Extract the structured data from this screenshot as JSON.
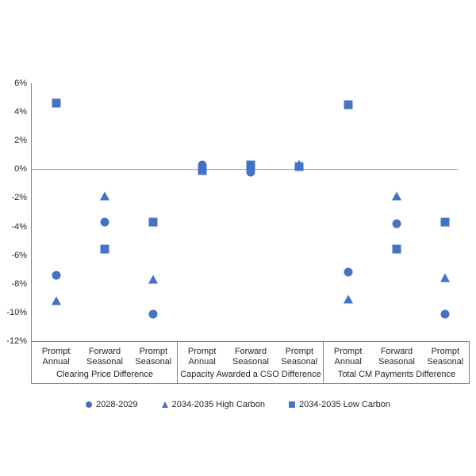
{
  "chart_data": {
    "type": "scatter",
    "title": "",
    "xlabel": "",
    "ylabel": "",
    "grid": "zero-line-only",
    "legend_position": "bottom",
    "y_axis": {
      "min": -12,
      "max": 6,
      "step": 2,
      "format": "percent",
      "ticks": [
        {
          "value": 6,
          "label": "6%"
        },
        {
          "value": 4,
          "label": "4%"
        },
        {
          "value": 2,
          "label": "2%"
        },
        {
          "value": 0,
          "label": "0%"
        },
        {
          "value": -2,
          "label": "-2%"
        },
        {
          "value": -4,
          "label": "-4%"
        },
        {
          "value": -6,
          "label": "-6%"
        },
        {
          "value": -8,
          "label": "-8%"
        },
        {
          "value": -10,
          "label": "-10%"
        },
        {
          "value": -12,
          "label": "-12%"
        }
      ]
    },
    "groups": [
      {
        "label": "Clearing Price Difference",
        "categories": [
          "Prompt\nAnnual",
          "Forward\nSeasonal",
          "Prompt\nSeasonal"
        ]
      },
      {
        "label": "Capacity Awarded a CSO Difference",
        "categories": [
          "Prompt\nAnnual",
          "Forward\nSeasonal",
          "Prompt\nSeasonal"
        ]
      },
      {
        "label": "Total CM Payments Difference",
        "categories": [
          "Prompt\nAnnual",
          "Forward\nSeasonal",
          "Prompt\nSeasonal"
        ]
      }
    ],
    "series": [
      {
        "name": "2028-2029",
        "marker": "circle",
        "values_pct": [
          -7.4,
          -3.7,
          -10.1,
          0.3,
          -0.2,
          0.2,
          -7.2,
          -3.8,
          -10.1
        ]
      },
      {
        "name": "2034-2035 High Carbon",
        "marker": "triangle",
        "values_pct": [
          -9.3,
          -2.0,
          -7.8,
          0.1,
          0.1,
          0.2,
          -9.2,
          -2.0,
          -7.7
        ]
      },
      {
        "name": "2034-2035 Low Carbon",
        "marker": "square",
        "values_pct": [
          4.6,
          -5.6,
          -3.7,
          -0.1,
          0.3,
          0.2,
          4.5,
          -5.6,
          -3.7
        ]
      }
    ],
    "colors": {
      "marker": "#4472C4",
      "axis_line": "#808080",
      "zero_line": "#A6A6A6",
      "text": "#262626"
    }
  }
}
